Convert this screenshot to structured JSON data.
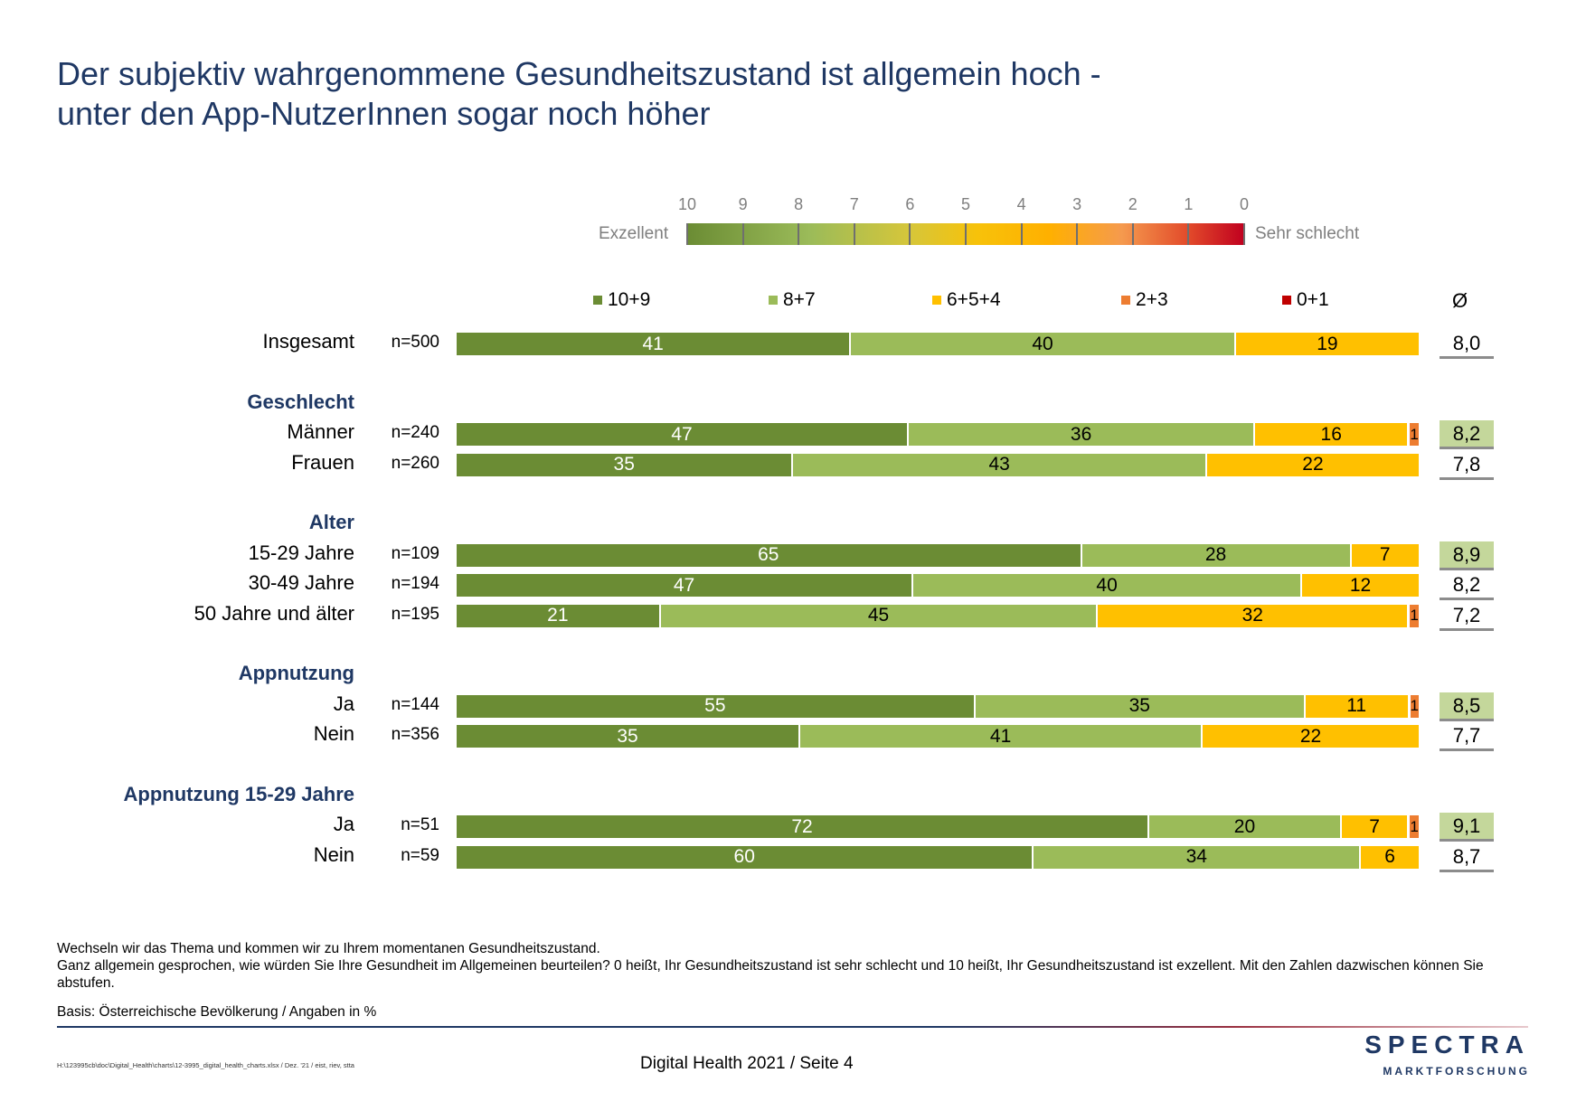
{
  "title_lines": [
    "Der subjektiv wahrgenommene Gesundheitszustand ist allgemein hoch -",
    "unter den App-NutzerInnen sogar noch höher"
  ],
  "scale": {
    "left_label": "Exzellent",
    "right_label": "Sehr schlecht",
    "ticks": [
      "10",
      "9",
      "8",
      "7",
      "6",
      "5",
      "4",
      "3",
      "2",
      "1",
      "0"
    ]
  },
  "avg_header": "Ø",
  "colors": {
    "10+9": "#6b8c34",
    "8+7": "#9bbb59",
    "6+5+4": "#ffc000",
    "2+3": "#ed7d31",
    "0+1": "#c00000",
    "avg_highlight": "#c4d79b"
  },
  "chart_data": {
    "type": "bar",
    "orientation": "horizontal",
    "stacked": true,
    "unit": "%",
    "legend": [
      "10+9",
      "8+7",
      "6+5+4",
      "2+3",
      "0+1"
    ],
    "groups": [
      {
        "label": "",
        "rows": [
          {
            "label": "Insgesamt",
            "n": "n=500",
            "values": [
              41,
              40,
              19,
              0,
              0
            ],
            "avg": "8,0",
            "highlight": false
          }
        ]
      },
      {
        "label": "Geschlecht",
        "rows": [
          {
            "label": "Männer",
            "n": "n=240",
            "values": [
              47,
              36,
              16,
              1,
              0
            ],
            "avg": "8,2",
            "highlight": true
          },
          {
            "label": "Frauen",
            "n": "n=260",
            "values": [
              35,
              43,
              22,
              0,
              0
            ],
            "avg": "7,8",
            "highlight": false
          }
        ]
      },
      {
        "label": "Alter",
        "rows": [
          {
            "label": "15-29 Jahre",
            "n": "n=109",
            "values": [
              65,
              28,
              7,
              0,
              0
            ],
            "avg": "8,9",
            "highlight": true
          },
          {
            "label": "30-49 Jahre",
            "n": "n=194",
            "values": [
              47,
              40,
              12,
              0,
              0
            ],
            "avg": "8,2",
            "highlight": false
          },
          {
            "label": "50 Jahre und älter",
            "n": "n=195",
            "values": [
              21,
              45,
              32,
              1,
              0
            ],
            "avg": "7,2",
            "highlight": false
          }
        ]
      },
      {
        "label": "Appnutzung",
        "rows": [
          {
            "label": "Ja",
            "n": "n=144",
            "values": [
              55,
              35,
              11,
              1,
              0
            ],
            "avg": "8,5",
            "highlight": true
          },
          {
            "label": "Nein",
            "n": "n=356",
            "values": [
              35,
              41,
              22,
              0,
              0
            ],
            "avg": "7,7",
            "highlight": false
          }
        ]
      },
      {
        "label": "Appnutzung 15-29 Jahre",
        "rows": [
          {
            "label": "Ja",
            "n": "n=51",
            "values": [
              72,
              20,
              7,
              1,
              0
            ],
            "avg": "9,1",
            "highlight": true
          },
          {
            "label": "Nein",
            "n": "n=59",
            "values": [
              60,
              34,
              6,
              0,
              0
            ],
            "avg": "8,7",
            "highlight": false
          }
        ]
      }
    ]
  },
  "footnotes": {
    "line1": "Wechseln wir das Thema und kommen wir zu Ihrem momentanen Gesundheitszustand.",
    "line2": "Ganz allgemein gesprochen, wie würden Sie Ihre Gesundheit im Allgemeinen beurteilen? 0 heißt, Ihr Gesundheitszustand ist sehr schlecht und 10 heißt, Ihr Gesundheitszustand ist exzellent. Mit den Zahlen dazwischen können Sie abstufen.",
    "basis": "Basis: Österreichische Bevölkerung / Angaben in %"
  },
  "footer": {
    "filepath": "H:\\123995cb\\doc\\Digital_Health\\charts\\12-3995_digital_health_charts.xlsx / Dez. '21 / eist, riev, stta",
    "page": "Digital Health 2021  /  Seite  4",
    "logo_word": "SPECTRA",
    "logo_sub": "MARKTFORSCHUNG"
  }
}
